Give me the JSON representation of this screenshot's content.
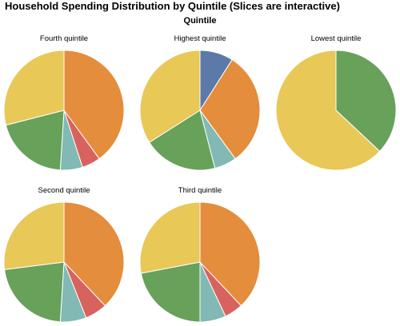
{
  "chart_data": {
    "type": "pie",
    "title": "Household Spending Distribution by Quintile (Slices are interactive)",
    "facet_header": "Quintile",
    "categories_colors": [
      "#5b7aa8",
      "#e48d3c",
      "#d8625d",
      "#82b9b5",
      "#67a15a",
      "#e8c857"
    ],
    "panels": [
      {
        "label": "Fourth quintile",
        "values": [
          0,
          40,
          5,
          6,
          20,
          29
        ]
      },
      {
        "label": "Highest quintile",
        "values": [
          9,
          31,
          0,
          6,
          20,
          34
        ]
      },
      {
        "label": "Lowest quintile",
        "values": [
          0,
          0,
          0,
          0,
          37,
          63
        ]
      },
      {
        "label": "Second quintile",
        "values": [
          0,
          38,
          6,
          7,
          22,
          27
        ]
      },
      {
        "label": "Third quintile",
        "values": [
          0,
          38,
          5,
          7,
          22,
          28
        ]
      }
    ]
  }
}
